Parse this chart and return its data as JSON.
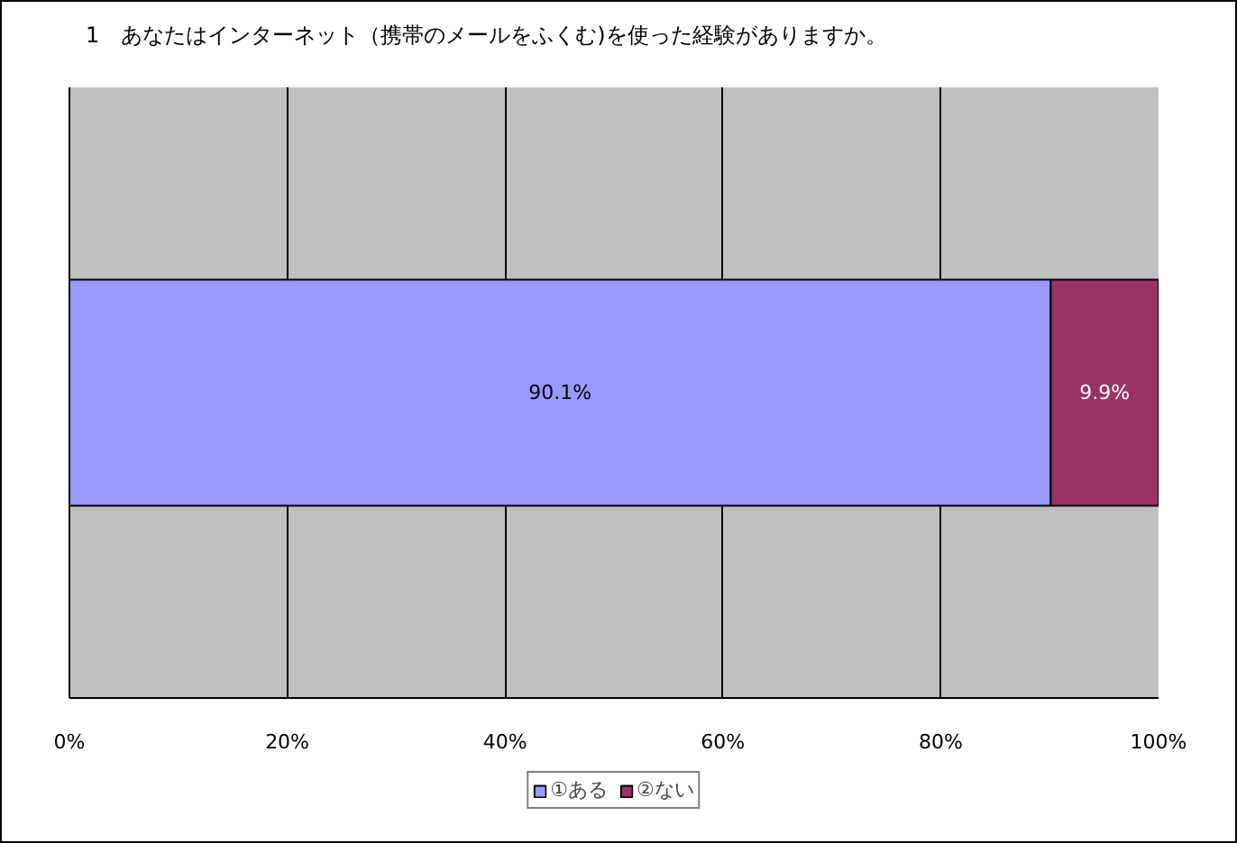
{
  "chart_data": {
    "type": "bar",
    "orientation": "horizontal",
    "stacked": true,
    "title": "1　あなたはインターネット（携帯のメールをふくむ)を使った経験がありますか。",
    "categories": [
      null
    ],
    "series": [
      {
        "name": "①ある",
        "color": "#9999ff",
        "values": [
          90.1
        ],
        "value_labels": [
          "90.1%"
        ]
      },
      {
        "name": "②ない",
        "color": "#993366",
        "values": [
          9.9
        ],
        "value_labels": [
          "9.9%"
        ]
      }
    ],
    "xlim": [
      0,
      100
    ],
    "xticks": [
      {
        "value": 0,
        "label": "0%"
      },
      {
        "value": 20,
        "label": "20%"
      },
      {
        "value": 40,
        "label": "40%"
      },
      {
        "value": 60,
        "label": "60%"
      },
      {
        "value": 80,
        "label": "80%"
      },
      {
        "value": 100,
        "label": "100%"
      }
    ],
    "grid": "x",
    "legend": "bottom"
  }
}
